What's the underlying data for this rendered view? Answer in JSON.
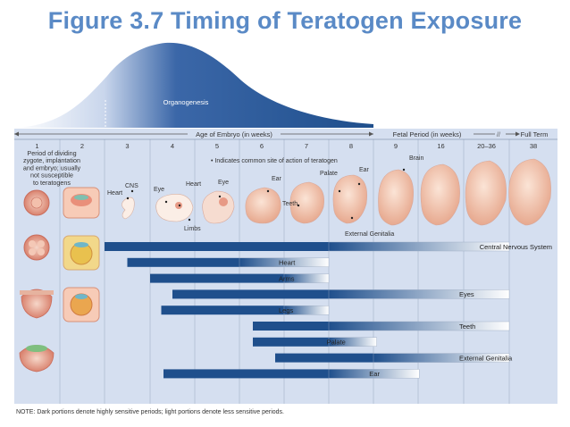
{
  "title": "Figure 3.7 Timing of Teratogen Exposure",
  "organogenesis_label": "Organogenesis",
  "embryo_header": "Age of Embryo (in weeks)",
  "fetal_header": "Fetal Period (in weeks)",
  "full_term_label": "Full Term",
  "week_labels": [
    "1",
    "2",
    "3",
    "4",
    "5",
    "6",
    "7",
    "8",
    "9",
    "16",
    "20–36",
    "38"
  ],
  "period_note_lines": [
    "Period of dividing",
    "zygote, implantation",
    "and embryo; usually",
    "not susceptible",
    "to teratogens"
  ],
  "indicates_note": "• Indicates common site of action of teratogen",
  "embryo_labels": {
    "cns": "CNS",
    "heart": "Heart",
    "eye": "Eye",
    "heart2": "Heart",
    "eye2": "Eye",
    "limbs": "Limbs",
    "ear": "Ear",
    "teeth": "Teeth",
    "palate": "Palate",
    "ear2": "Ear",
    "brain": "Brain",
    "external_genitalia": "External Genitalia"
  },
  "sensitivity_bars": [
    {
      "organ": "Central Nervous System",
      "start_week": 3,
      "dark_end_week": 8,
      "end_week": 38
    },
    {
      "organ": "Heart",
      "start_week": 3.5,
      "dark_end_week": 6,
      "end_week": 8
    },
    {
      "organ": "Arms",
      "start_week": 4,
      "dark_end_week": 7,
      "end_week": 8
    },
    {
      "organ": "Eyes",
      "start_week": 4.5,
      "dark_end_week": 8,
      "end_week": 38
    },
    {
      "organ": "Legs",
      "start_week": 4.25,
      "dark_end_week": 7,
      "end_week": 8
    },
    {
      "organ": "Teeth",
      "start_week": 6.3,
      "dark_end_week": 8,
      "end_week": 38
    },
    {
      "organ": "Palate",
      "start_week": 6.3,
      "dark_end_week": 8,
      "end_week": 9.5
    },
    {
      "organ": "External Genitalia",
      "start_week": 6.8,
      "dark_end_week": 9,
      "end_week": 38
    },
    {
      "organ": "Ear",
      "start_week": 4.3,
      "dark_end_week": 8,
      "end_week": 16.3
    }
  ],
  "footnote": "NOTE: Dark portions denote highly sensitive periods; light portions denote less sensitive periods.",
  "colors": {
    "title": "#5a8ac6",
    "panel": "#d5dff0",
    "dark_bar": "#1f4f8c",
    "grid": "#9fb0c8",
    "text": "#333333"
  }
}
